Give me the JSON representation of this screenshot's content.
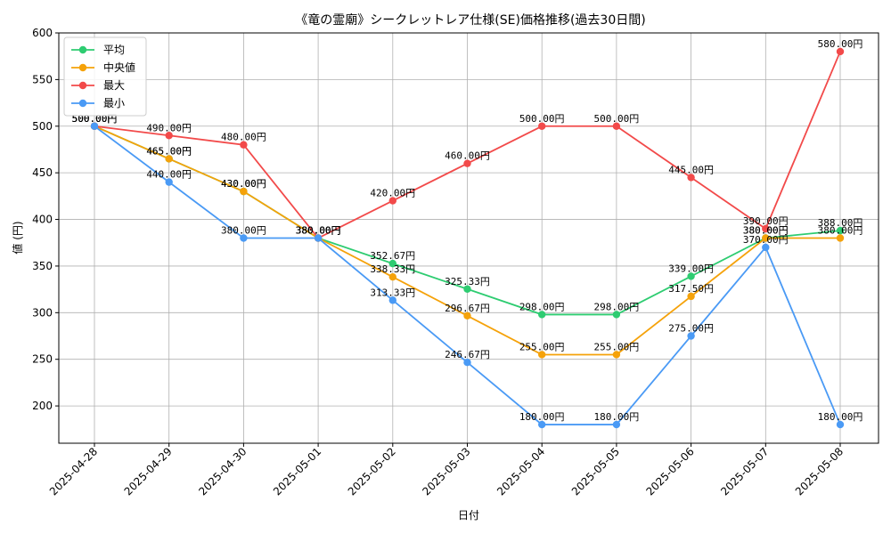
{
  "chart_data": {
    "type": "line",
    "title": "《竜の霊廟》シークレットレア仕様(SE)価格推移(過去30日間)",
    "xlabel": "日付",
    "ylabel": "値 (円)",
    "categories": [
      "2025-04-28",
      "2025-04-29",
      "2025-04-30",
      "2025-05-01",
      "2025-05-02",
      "2025-05-03",
      "2025-05-04",
      "2025-05-05",
      "2025-05-06",
      "2025-05-07",
      "2025-05-08"
    ],
    "ylim": [
      160,
      600
    ],
    "yticks": [
      200,
      250,
      300,
      350,
      400,
      450,
      500,
      550,
      600
    ],
    "grid": true,
    "legend_position": "top-left",
    "series": [
      {
        "name": "平均",
        "color": "#2ecc71",
        "values": [
          500,
          465,
          430,
          380,
          352.67,
          325.33,
          298,
          298,
          339,
          380,
          388
        ]
      },
      {
        "name": "中央値",
        "color": "#f5a20a",
        "values": [
          500,
          465,
          430,
          380,
          338.33,
          296.67,
          255,
          255,
          317.5,
          380,
          380
        ]
      },
      {
        "name": "最大",
        "color": "#f24a4a",
        "values": [
          500,
          490,
          480,
          380,
          420,
          460,
          500,
          500,
          445,
          390,
          580
        ]
      },
      {
        "name": "最小",
        "color": "#4a9af5",
        "values": [
          500,
          440,
          380,
          380,
          313.33,
          246.67,
          180,
          180,
          275,
          370,
          180
        ]
      }
    ],
    "data_label_suffix": "円"
  }
}
